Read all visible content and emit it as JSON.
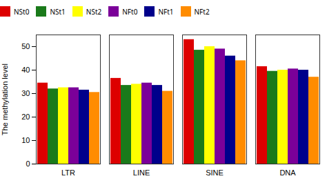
{
  "chart_data": {
    "type": "bar",
    "categories": [
      "LTR",
      "LINE",
      "SINE",
      "DNA"
    ],
    "series": [
      {
        "name": "NSt0",
        "color": "#DD0000",
        "values": [
          34.5,
          36.5,
          53.0,
          41.5
        ]
      },
      {
        "name": "NSt1",
        "color": "#1A7A1A",
        "values": [
          32.0,
          33.5,
          48.5,
          39.5
        ]
      },
      {
        "name": "NSt2",
        "color": "#FFFF00",
        "values": [
          32.5,
          34.0,
          50.0,
          40.0
        ]
      },
      {
        "name": "NFt0",
        "color": "#7B0099",
        "values": [
          32.5,
          34.5,
          49.0,
          40.5
        ]
      },
      {
        "name": "NFt1",
        "color": "#00008B",
        "values": [
          31.5,
          33.5,
          46.0,
          40.0
        ]
      },
      {
        "name": "NFt2",
        "color": "#FF8C00",
        "values": [
          30.5,
          31.0,
          44.0,
          37.0
        ]
      }
    ],
    "ylabel": "The methylation level",
    "ylim": [
      0,
      55
    ],
    "yticks": [
      0,
      10,
      20,
      30,
      40,
      50
    ],
    "legend": "top",
    "grid": false
  }
}
